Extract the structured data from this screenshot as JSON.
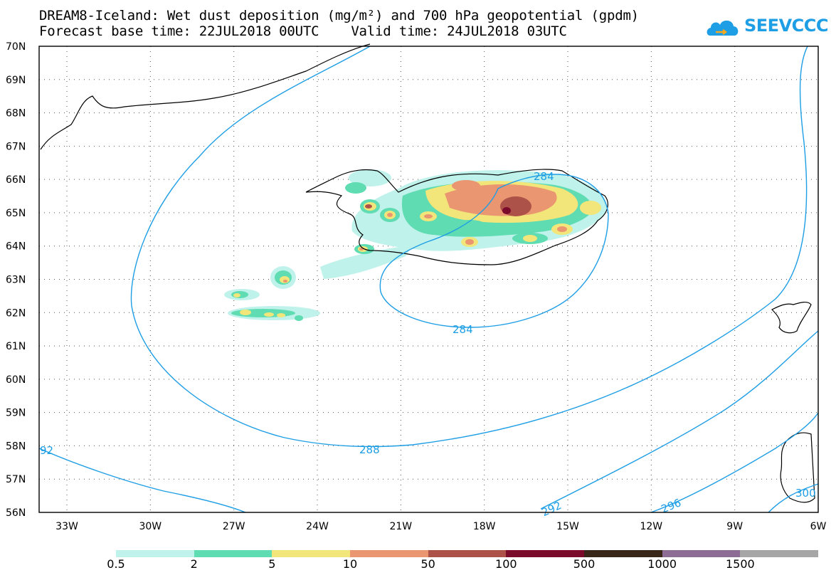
{
  "title": {
    "line1": "DREAM8-Iceland: Wet dust deposition (mg/m²) and 700 hPa geopotential (gpdm)",
    "line2": "Forecast base time: 22JUL2018 00UTC    Valid time: 24JUL2018 03UTC"
  },
  "logo": {
    "text": "SEEVCCC",
    "icon": "cloud-icon",
    "color": "#1e9ee5"
  },
  "map": {
    "lat_labels": [
      "70N",
      "69N",
      "68N",
      "67N",
      "66N",
      "65N",
      "64N",
      "63N",
      "62N",
      "61N",
      "60N",
      "59N",
      "58N",
      "57N",
      "56N"
    ],
    "lon_labels": [
      "33W",
      "30W",
      "27W",
      "24W",
      "21W",
      "18W",
      "15W",
      "12W",
      "9W",
      "6W"
    ],
    "contour_color": "#1e9ee5",
    "contour_labels": [
      "284",
      "284",
      "288",
      "292",
      "296",
      "92",
      "300"
    ]
  },
  "legend": {
    "colors": [
      "#bff2ea",
      "#5fdcb2",
      "#f2e67a",
      "#e99671",
      "#ad5248",
      "#7a0b2b",
      "#382619",
      "#8d6c96",
      "#a6a6a6"
    ],
    "labels": [
      "0.5",
      "2",
      "5",
      "10",
      "50",
      "100",
      "500",
      "1000",
      "1500"
    ]
  }
}
